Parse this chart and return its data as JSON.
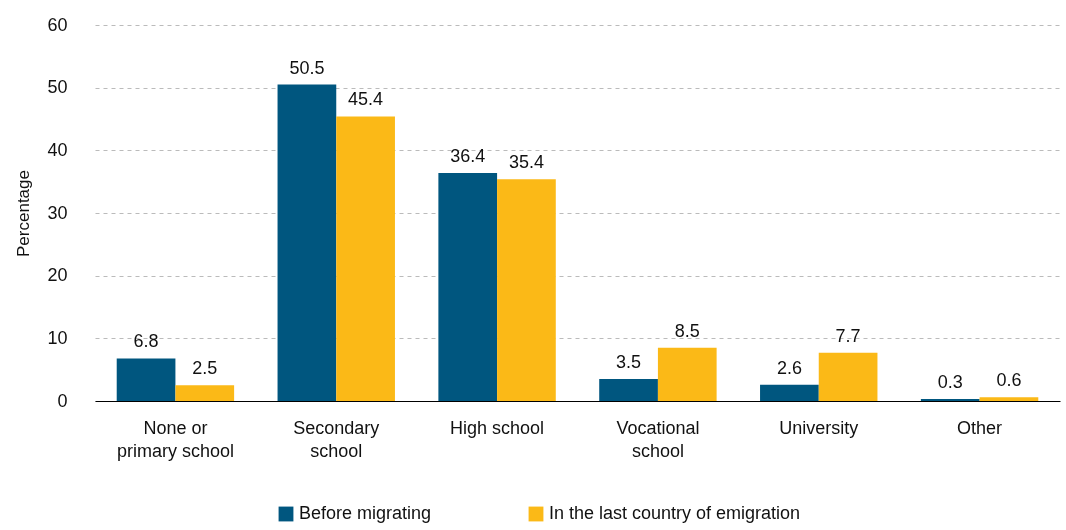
{
  "chart_data": {
    "type": "bar",
    "ylabel": "Percentage",
    "categories": [
      "None or primary school",
      "Secondary school",
      "High school",
      "Vocational school",
      "University",
      "Other"
    ],
    "series": [
      {
        "name": "Before migrating",
        "color": "#00567f",
        "values": [
          6.8,
          50.5,
          36.4,
          3.5,
          2.6,
          0.3
        ]
      },
      {
        "name": "In the last country of emigration",
        "color": "#fbb917",
        "values": [
          2.5,
          45.4,
          35.4,
          8.5,
          7.7,
          0.6
        ]
      }
    ],
    "ylim": [
      0,
      60
    ],
    "yticks": [
      0,
      10,
      20,
      30,
      40,
      50,
      60
    ],
    "grid": "y",
    "legend": "bottom",
    "data_labels": true
  }
}
